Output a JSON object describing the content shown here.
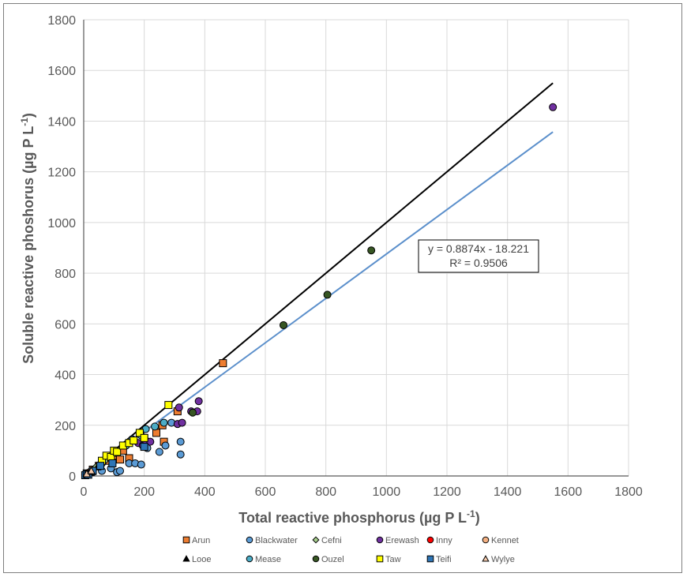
{
  "chart_data": {
    "type": "scatter",
    "xlabel_main": "Total reactive phosphorus (µg P L",
    "xlabel_sup": "-1",
    "xlabel_end": ")",
    "ylabel_main": "Soluble reactive phoshorus (µg P L",
    "ylabel_sup": "-1",
    "ylabel_end": ")",
    "xlim": [
      0,
      1800
    ],
    "ylim": [
      0,
      1800
    ],
    "xticks": [
      0,
      200,
      400,
      600,
      800,
      1000,
      1200,
      1400,
      1600,
      1800
    ],
    "yticks": [
      0,
      200,
      400,
      600,
      800,
      1000,
      1200,
      1400,
      1600,
      1800
    ],
    "grid": true,
    "legend_position": "bottom",
    "annotation": {
      "equation": "y = 0.8874x - 18.221",
      "r2": "R² = 0.9506"
    },
    "lines": [
      {
        "kind": "1:1",
        "color": "#000000",
        "x": [
          0,
          1550
        ],
        "y": [
          0,
          1550
        ]
      },
      {
        "kind": "regression",
        "color": "#5b8fcb",
        "x": [
          0,
          1550
        ],
        "y": [
          -18.221,
          1357.2
        ]
      }
    ],
    "series": [
      {
        "name": "Arun",
        "marker": "square",
        "color": "#ed7d31",
        "x": [
          10,
          30,
          50,
          80,
          100,
          120,
          130,
          150,
          200,
          240,
          260,
          265,
          310,
          460
        ],
        "y": [
          10,
          25,
          40,
          60,
          80,
          65,
          100,
          70,
          150,
          170,
          200,
          135,
          255,
          445
        ]
      },
      {
        "name": "Blackwater",
        "marker": "circle",
        "color": "#5b9bd5",
        "x": [
          10,
          30,
          60,
          90,
          110,
          120,
          150,
          170,
          190,
          210,
          250,
          270,
          320,
          320,
          290
        ],
        "y": [
          5,
          15,
          20,
          30,
          15,
          20,
          50,
          50,
          45,
          110,
          95,
          120,
          135,
          85,
          210
        ]
      },
      {
        "name": "Cefni",
        "marker": "diamond",
        "color": "#a9d18e",
        "x": [
          5,
          20,
          40,
          70
        ],
        "y": [
          5,
          18,
          35,
          60
        ]
      },
      {
        "name": "Erewash",
        "marker": "circle",
        "color": "#7030a0",
        "x": [
          180,
          195,
          205,
          220,
          310,
          315,
          325,
          355,
          375,
          380,
          1550
        ],
        "y": [
          130,
          120,
          140,
          135,
          205,
          270,
          210,
          255,
          255,
          295,
          1455
        ]
      },
      {
        "name": "Inny",
        "marker": "circle",
        "color": "#ff0000",
        "x": [
          15
        ],
        "y": [
          12
        ]
      },
      {
        "name": "Kennet",
        "marker": "circle",
        "color": "#f4b183",
        "x": [
          25,
          55
        ],
        "y": [
          20,
          45
        ]
      },
      {
        "name": "Looe",
        "marker": "triangle",
        "color": "#000000",
        "x": [
          20,
          45
        ],
        "y": [
          15,
          35
        ]
      },
      {
        "name": "Mease",
        "marker": "circle",
        "color": "#4bacc6",
        "x": [
          60,
          100,
          140,
          160,
          190,
          205,
          235,
          265
        ],
        "y": [
          50,
          90,
          120,
          145,
          160,
          185,
          195,
          210
        ]
      },
      {
        "name": "Ouzel",
        "marker": "circle",
        "color": "#375623",
        "x": [
          360,
          660,
          805,
          950
        ],
        "y": [
          250,
          595,
          715,
          890
        ]
      },
      {
        "name": "Taw",
        "marker": "square",
        "color": "#ffff00",
        "x": [
          60,
          75,
          90,
          100,
          110,
          130,
          150,
          165,
          185,
          200,
          280
        ],
        "y": [
          60,
          80,
          75,
          100,
          95,
          120,
          130,
          140,
          170,
          150,
          280
        ]
      },
      {
        "name": "Teifi",
        "marker": "square",
        "color": "#2e75b6",
        "x": [
          5,
          10,
          15,
          30,
          55,
          95,
          200
        ],
        "y": [
          3,
          8,
          5,
          20,
          40,
          50,
          115
        ]
      },
      {
        "name": "Wylye",
        "marker": "triangle",
        "color": "#f8cbad",
        "x": [
          10,
          25
        ],
        "y": [
          8,
          20
        ]
      }
    ]
  }
}
